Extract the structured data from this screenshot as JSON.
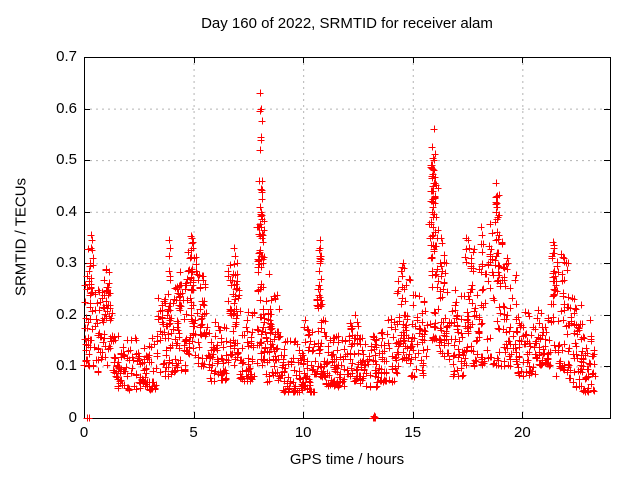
{
  "chart_data": {
    "type": "scatter",
    "title": "Day 160 of 2022, SRMTID for receiver alam",
    "xlabel": "GPS time / hours",
    "ylabel": "SRMTID / TECUs",
    "series_name": "SRMTID",
    "xlim": [
      0,
      24
    ],
    "ylim": [
      0,
      0.7
    ],
    "xticks": [
      0,
      5,
      10,
      15,
      20
    ],
    "yticks": [
      0,
      0.1,
      0.2,
      0.3,
      0.4,
      0.5,
      0.6,
      0.7
    ],
    "grid": true,
    "grid_style": "dotted",
    "grid_color": "#b3b3b3",
    "legend": "none",
    "marker": {
      "shape": "plus",
      "color": "#ff0000",
      "size": 7
    },
    "frame_color": "#000000",
    "outlier_points": [
      [
        0.15,
        0
      ],
      [
        0.22,
        0
      ],
      [
        0.33,
        0.355
      ],
      [
        0.36,
        0.345
      ],
      [
        0.3,
        0.33
      ],
      [
        0.4,
        0.31
      ],
      [
        0.28,
        0.3
      ],
      [
        0.25,
        0.285
      ],
      [
        3.9,
        0.345
      ],
      [
        3.92,
        0.33
      ],
      [
        3.88,
        0.315
      ],
      [
        4.88,
        0.352
      ],
      [
        4.92,
        0.34
      ],
      [
        4.96,
        0.33
      ],
      [
        5.0,
        0.31
      ],
      [
        6.85,
        0.33
      ],
      [
        6.9,
        0.315
      ],
      [
        7.0,
        0.3
      ],
      [
        8.05,
        0.63
      ],
      [
        8.07,
        0.6
      ],
      [
        8.04,
        0.595
      ],
      [
        8.1,
        0.575
      ],
      [
        8.06,
        0.545
      ],
      [
        8.09,
        0.54
      ],
      [
        8.05,
        0.52
      ],
      [
        8.1,
        0.46
      ],
      [
        8.07,
        0.445
      ],
      [
        8.11,
        0.425
      ],
      [
        8.05,
        0.41
      ],
      [
        8.08,
        0.395
      ],
      [
        8.12,
        0.385
      ],
      [
        8.06,
        0.37
      ],
      [
        8.1,
        0.35
      ],
      [
        10.78,
        0.345
      ],
      [
        10.75,
        0.33
      ],
      [
        10.8,
        0.315
      ],
      [
        10.77,
        0.3
      ],
      [
        10.74,
        0.285
      ],
      [
        10.8,
        0.27
      ],
      [
        10.76,
        0.25
      ],
      [
        10.79,
        0.235
      ],
      [
        10.75,
        0.22
      ],
      [
        13.2,
        0
      ],
      [
        13.21,
        0
      ],
      [
        13.22,
        0
      ],
      [
        13.23,
        0
      ],
      [
        13.24,
        0
      ],
      [
        13.25,
        0
      ],
      [
        13.26,
        0
      ],
      [
        13.27,
        0
      ],
      [
        13.21,
        0.003
      ],
      [
        13.23,
        0.004
      ],
      [
        13.25,
        0.003
      ],
      [
        13.27,
        0.002
      ],
      [
        14.55,
        0.3
      ],
      [
        14.6,
        0.29
      ],
      [
        14.5,
        0.275
      ],
      [
        15.95,
        0.56
      ],
      [
        15.9,
        0.525
      ],
      [
        15.93,
        0.505
      ],
      [
        15.97,
        0.5
      ],
      [
        15.9,
        0.49
      ],
      [
        15.95,
        0.48
      ],
      [
        15.88,
        0.47
      ],
      [
        15.98,
        0.455
      ],
      [
        15.92,
        0.45
      ],
      [
        15.9,
        0.44
      ],
      [
        16.0,
        0.43
      ],
      [
        15.88,
        0.42
      ],
      [
        15.93,
        0.41
      ],
      [
        15.9,
        0.4
      ],
      [
        16.05,
        0.39
      ],
      [
        15.85,
        0.38
      ],
      [
        16.3,
        0.35
      ],
      [
        16.35,
        0.34
      ],
      [
        17.45,
        0.35
      ],
      [
        17.5,
        0.345
      ],
      [
        17.55,
        0.33
      ],
      [
        18.1,
        0.37
      ],
      [
        18.15,
        0.355
      ],
      [
        18.82,
        0.455
      ],
      [
        18.85,
        0.43
      ],
      [
        18.8,
        0.415
      ],
      [
        18.86,
        0.41
      ],
      [
        18.8,
        0.4
      ],
      [
        18.88,
        0.39
      ],
      [
        18.83,
        0.385
      ],
      [
        18.85,
        0.36
      ],
      [
        18.8,
        0.345
      ],
      [
        18.9,
        0.32
      ],
      [
        19.3,
        0.31
      ],
      [
        19.35,
        0.3
      ],
      [
        21.4,
        0.341
      ],
      [
        21.43,
        0.335
      ],
      [
        21.46,
        0.33
      ],
      [
        21.4,
        0.32
      ],
      [
        21.37,
        0.31
      ],
      [
        22.0,
        0.3
      ],
      [
        23.1,
        0.19
      ],
      [
        23.15,
        0.15
      ],
      [
        23.2,
        0.12
      ]
    ],
    "cluster_format": [
      "x_start",
      "x_end",
      "n_points",
      "y_min",
      "y_max",
      "skew"
    ],
    "dense_clusters": [
      [
        0.0,
        0.5,
        40,
        0.1,
        0.28,
        1.4
      ],
      [
        0.05,
        0.45,
        12,
        0.15,
        0.33,
        1.1
      ],
      [
        0.5,
        1.35,
        55,
        0.09,
        0.25,
        1.4
      ],
      [
        0.85,
        1.15,
        15,
        0.18,
        0.3,
        1.0
      ],
      [
        1.35,
        3.3,
        115,
        0.055,
        0.16,
        1.5
      ],
      [
        3.3,
        4.1,
        55,
        0.08,
        0.24,
        1.5
      ],
      [
        3.8,
        4.0,
        12,
        0.15,
        0.34,
        1.0
      ],
      [
        4.1,
        4.75,
        50,
        0.09,
        0.27,
        1.4
      ],
      [
        4.25,
        4.4,
        10,
        0.15,
        0.3,
        1.0
      ],
      [
        4.75,
        5.15,
        40,
        0.12,
        0.33,
        1.2
      ],
      [
        4.85,
        5.0,
        10,
        0.2,
        0.35,
        1.0
      ],
      [
        5.15,
        5.6,
        40,
        0.1,
        0.28,
        1.3
      ],
      [
        5.6,
        6.5,
        60,
        0.07,
        0.19,
        1.5
      ],
      [
        6.55,
        7.1,
        45,
        0.1,
        0.3,
        1.3
      ],
      [
        6.8,
        7.05,
        12,
        0.18,
        0.33,
        1.0
      ],
      [
        7.1,
        7.85,
        50,
        0.07,
        0.22,
        1.5
      ],
      [
        7.9,
        8.25,
        55,
        0.1,
        0.4,
        1.3
      ],
      [
        8.0,
        8.2,
        15,
        0.3,
        0.46,
        1.0
      ],
      [
        8.25,
        9.0,
        55,
        0.07,
        0.24,
        1.5
      ],
      [
        8.45,
        8.6,
        8,
        0.15,
        0.28,
        1.0
      ],
      [
        9.0,
        10.5,
        95,
        0.05,
        0.15,
        1.5
      ],
      [
        10.0,
        10.5,
        10,
        0.12,
        0.2,
        1.2
      ],
      [
        10.55,
        11.0,
        40,
        0.08,
        0.25,
        1.5
      ],
      [
        10.7,
        10.85,
        10,
        0.2,
        0.34,
        1.0
      ],
      [
        11.0,
        12.0,
        70,
        0.06,
        0.16,
        1.5
      ],
      [
        12.0,
        12.5,
        40,
        0.07,
        0.21,
        1.5
      ],
      [
        12.5,
        13.5,
        60,
        0.06,
        0.16,
        1.5
      ],
      [
        13.5,
        14.3,
        50,
        0.07,
        0.2,
        1.5
      ],
      [
        14.3,
        14.9,
        42,
        0.1,
        0.28,
        1.3
      ],
      [
        14.45,
        14.65,
        8,
        0.18,
        0.3,
        1.0
      ],
      [
        14.9,
        15.7,
        50,
        0.08,
        0.24,
        1.4
      ],
      [
        15.75,
        16.2,
        50,
        0.15,
        0.5,
        1.2
      ],
      [
        15.85,
        16.05,
        14,
        0.35,
        0.52,
        1.0
      ],
      [
        16.2,
        16.6,
        38,
        0.12,
        0.33,
        1.3
      ],
      [
        16.6,
        17.3,
        45,
        0.08,
        0.25,
        1.4
      ],
      [
        17.3,
        17.8,
        42,
        0.1,
        0.34,
        1.3
      ],
      [
        17.8,
        18.4,
        45,
        0.1,
        0.36,
        1.3
      ],
      [
        18.4,
        19.1,
        48,
        0.1,
        0.38,
        1.3
      ],
      [
        18.75,
        18.95,
        10,
        0.28,
        0.45,
        1.0
      ],
      [
        19.1,
        19.7,
        42,
        0.1,
        0.3,
        1.4
      ],
      [
        19.7,
        20.6,
        55,
        0.08,
        0.21,
        1.5
      ],
      [
        20.6,
        21.3,
        50,
        0.1,
        0.21,
        1.4
      ],
      [
        21.3,
        22.1,
        55,
        0.08,
        0.32,
        1.3
      ],
      [
        21.35,
        21.5,
        10,
        0.22,
        0.34,
        1.0
      ],
      [
        22.1,
        22.7,
        48,
        0.06,
        0.26,
        1.4
      ],
      [
        22.7,
        23.3,
        40,
        0.05,
        0.19,
        1.5
      ]
    ],
    "seed": 7
  }
}
